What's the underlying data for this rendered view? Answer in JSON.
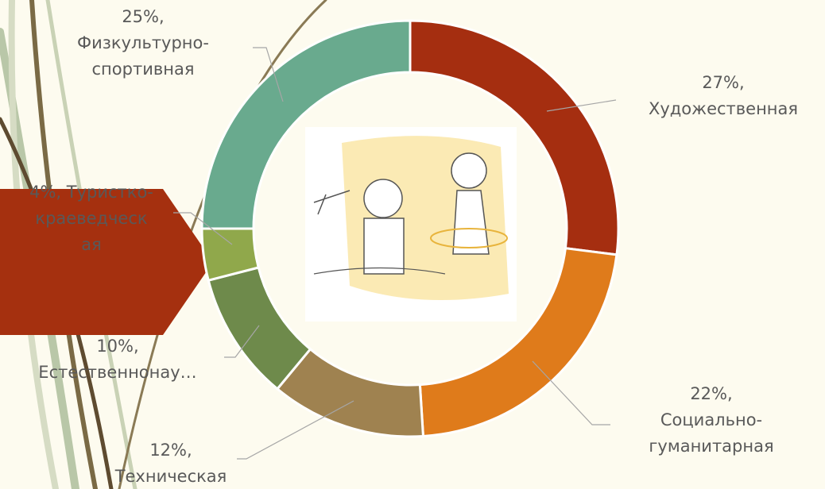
{
  "chart_data": {
    "type": "donut",
    "values": [
      27,
      22,
      12,
      10,
      4,
      25
    ],
    "value_labels": [
      [
        "27%,",
        "Художественная"
      ],
      [
        "22%,",
        "Социально-",
        "гуманитарная"
      ],
      [
        "12%,",
        "Техническая"
      ],
      [
        "10%,",
        "Естественнонау…"
      ],
      [
        "4%, Туристко-",
        "краеведческ",
        "ая"
      ],
      [
        "25%,",
        "Физкультурно-",
        "спортивная"
      ]
    ],
    "colors": [
      "#a52e10",
      "#df7b1b",
      "#9f8250",
      "#6e8a4b",
      "#90a84b",
      "#69aa8e"
    ]
  }
}
